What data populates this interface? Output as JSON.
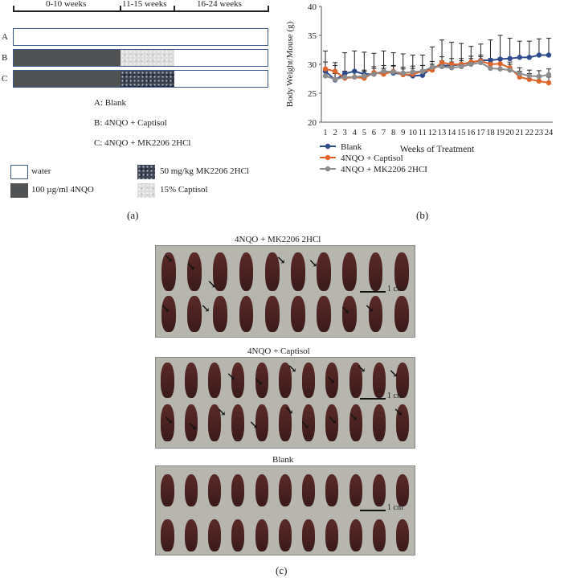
{
  "panel_a": {
    "period_labels": [
      "0-10 weeks",
      "11-15 weeks",
      "16-24 weeks"
    ],
    "rows": [
      {
        "letter": "A",
        "segments": [
          "water",
          "water",
          "water"
        ]
      },
      {
        "letter": "B",
        "segments": [
          "4NQO",
          "Captisol",
          "water"
        ]
      },
      {
        "letter": "C",
        "segments": [
          "4NQO",
          "MK2206",
          "water"
        ]
      }
    ],
    "group_labels": [
      "A: Blank",
      "B: 4NQO + Captisol",
      "C: 4NQO + MK2206 2HCl"
    ],
    "legend": [
      {
        "label": "water"
      },
      {
        "label": "100 µg/ml 4NQO"
      },
      {
        "label": "50 mg/kg MK2206 2HCl"
      },
      {
        "label": "15% Captisol"
      }
    ],
    "caption": "(a)"
  },
  "chart_data": {
    "type": "line",
    "ylabel": "Body Weight/Mouse (g)",
    "xlabel": "Weeks of Treatment",
    "ylim": [
      20,
      40
    ],
    "yticks": [
      20,
      25,
      30,
      35,
      40
    ],
    "x": [
      1,
      2,
      3,
      4,
      5,
      6,
      7,
      8,
      9,
      10,
      11,
      12,
      13,
      14,
      15,
      16,
      17,
      18,
      19,
      20,
      21,
      22,
      23,
      24
    ],
    "series": [
      {
        "name": "Blank",
        "color": "#2e4a8c",
        "values": [
          28.8,
          27.3,
          28.4,
          28.8,
          28.3,
          28.3,
          28.8,
          28.5,
          28.3,
          28.0,
          28.1,
          29.5,
          29.8,
          29.8,
          30.0,
          30.3,
          30.7,
          30.7,
          30.9,
          31.0,
          31.2,
          31.2,
          31.6,
          31.6
        ],
        "error": [
          3.5,
          3.0,
          3.6,
          3.5,
          3.8,
          3.6,
          3.5,
          3.5,
          3.5,
          3.6,
          3.5,
          3.5,
          4.4,
          4.0,
          3.6,
          2.8,
          2.8,
          3.5,
          4.1,
          3.5,
          2.8,
          2.8,
          2.8,
          2.9
        ]
      },
      {
        "name": "4NQO + Captisol",
        "color": "#e0652a",
        "values": [
          29.2,
          28.8,
          27.6,
          27.8,
          27.6,
          28.6,
          28.3,
          28.8,
          28.2,
          28.3,
          28.8,
          29.0,
          30.3,
          30.0,
          30.0,
          30.4,
          30.6,
          30.0,
          30.1,
          29.4,
          27.8,
          27.4,
          27.1,
          26.8
        ],
        "error": [
          1.2,
          1.0,
          1.2,
          1.0,
          1.2,
          1.0,
          1.0,
          1.0,
          1.0,
          1.0,
          1.0,
          1.0,
          1.0,
          1.0,
          1.0,
          1.0,
          1.0,
          1.0,
          1.0,
          1.0,
          1.0,
          1.0,
          1.0,
          1.0
        ]
      },
      {
        "name": "4NQO + MK2206 2HCI",
        "color": "#8c8c8c",
        "values": [
          28.0,
          27.4,
          27.8,
          27.8,
          28.0,
          28.3,
          28.8,
          28.7,
          28.5,
          28.7,
          28.8,
          29.5,
          29.6,
          29.4,
          29.6,
          30.0,
          30.3,
          29.3,
          29.2,
          29.0,
          28.4,
          28.0,
          27.9,
          28.2
        ],
        "error": [
          1.0,
          1.0,
          1.0,
          1.0,
          1.0,
          1.0,
          1.0,
          1.0,
          1.0,
          1.0,
          1.0,
          1.0,
          1.0,
          1.0,
          1.0,
          1.0,
          1.0,
          1.0,
          1.0,
          1.0,
          1.0,
          1.0,
          1.0,
          1.0
        ]
      }
    ],
    "legend_position": "bottom-left",
    "caption": "(b)"
  },
  "panel_c": {
    "groups": [
      {
        "title": "4NQO + MK2206 2HCl",
        "scale": "1 cm"
      },
      {
        "title": "4NQO + Captisol",
        "scale": "1 cm"
      },
      {
        "title": "Blank",
        "scale": "1 cm"
      }
    ],
    "caption": "(c)"
  }
}
